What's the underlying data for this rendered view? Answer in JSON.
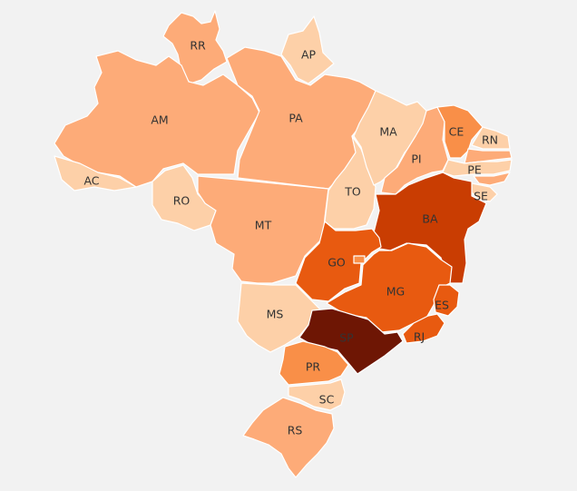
{
  "map": {
    "background": "#f2f2f2",
    "border_color": "#ffffff",
    "label_color": "#333333",
    "palette": {
      "lightest": "#fdd0a8",
      "light": "#fdab78",
      "medium": "#f98f48",
      "dark": "#e85a10",
      "darker": "#c93d02",
      "darkest": "#6e1604"
    },
    "states": [
      {
        "code": "RR",
        "label": "RR",
        "shade": "light"
      },
      {
        "code": "AP",
        "label": "AP",
        "shade": "lightest"
      },
      {
        "code": "AM",
        "label": "AM",
        "shade": "light"
      },
      {
        "code": "PA",
        "label": "PA",
        "shade": "light"
      },
      {
        "code": "AC",
        "label": "AC",
        "shade": "lightest"
      },
      {
        "code": "RO",
        "label": "RO",
        "shade": "lightest"
      },
      {
        "code": "MT",
        "label": "MT",
        "shade": "light"
      },
      {
        "code": "TO",
        "label": "TO",
        "shade": "lightest"
      },
      {
        "code": "MA",
        "label": "MA",
        "shade": "lightest"
      },
      {
        "code": "PI",
        "label": "PI",
        "shade": "light"
      },
      {
        "code": "CE",
        "label": "CE",
        "shade": "medium"
      },
      {
        "code": "RN",
        "label": "RN",
        "shade": "lightest"
      },
      {
        "code": "PB",
        "label": "",
        "shade": "light"
      },
      {
        "code": "PE",
        "label": "PE",
        "shade": "lightest"
      },
      {
        "code": "AL",
        "label": "",
        "shade": "light"
      },
      {
        "code": "SE",
        "label": "SE",
        "shade": "lightest"
      },
      {
        "code": "BA",
        "label": "BA",
        "shade": "darker"
      },
      {
        "code": "GO",
        "label": "GO",
        "shade": "dark"
      },
      {
        "code": "DF",
        "label": "",
        "shade": "medium"
      },
      {
        "code": "MS",
        "label": "MS",
        "shade": "lightest"
      },
      {
        "code": "MG",
        "label": "MG",
        "shade": "dark"
      },
      {
        "code": "ES",
        "label": "ES",
        "shade": "dark"
      },
      {
        "code": "RJ",
        "label": "RJ",
        "shade": "dark"
      },
      {
        "code": "SP",
        "label": "SP",
        "shade": "darkest"
      },
      {
        "code": "PR",
        "label": "PR",
        "shade": "medium"
      },
      {
        "code": "SC",
        "label": "SC",
        "shade": "lightest"
      },
      {
        "code": "RS",
        "label": "RS",
        "shade": "light"
      }
    ]
  }
}
